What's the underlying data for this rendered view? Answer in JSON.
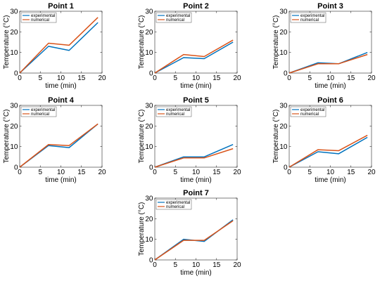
{
  "chart_data": [
    {
      "type": "line",
      "title": "Point 1",
      "xlabel": "time (min)",
      "ylabel": "Temperature (°C)",
      "xlim": [
        0,
        20
      ],
      "ylim": [
        0,
        30
      ],
      "xticks": [
        0,
        5,
        10,
        15,
        20
      ],
      "yticks": [
        0,
        10,
        20,
        30
      ],
      "legend": "top-left",
      "series": [
        {
          "name": "experimental",
          "color": "#0072BD",
          "x": [
            0,
            7,
            12,
            19
          ],
          "y": [
            0,
            13,
            11,
            24.5
          ]
        },
        {
          "name": "numerical",
          "color": "#D95319",
          "x": [
            0,
            7,
            12,
            19
          ],
          "y": [
            0,
            14.5,
            13.5,
            27
          ]
        }
      ]
    },
    {
      "type": "line",
      "title": "Point 2",
      "xlabel": "time (min)",
      "ylabel": "Temperature (°C)",
      "xlim": [
        0,
        20
      ],
      "ylim": [
        0,
        30
      ],
      "xticks": [
        0,
        5,
        10,
        15,
        20
      ],
      "yticks": [
        0,
        10,
        20,
        30
      ],
      "legend": "top-left",
      "series": [
        {
          "name": "experimental",
          "color": "#0072BD",
          "x": [
            0,
            7,
            12,
            19
          ],
          "y": [
            0,
            7.5,
            7,
            15
          ]
        },
        {
          "name": "numerical",
          "color": "#D95319",
          "x": [
            0,
            7,
            12,
            19
          ],
          "y": [
            0,
            9,
            8,
            16
          ]
        }
      ]
    },
    {
      "type": "line",
      "title": "Point 3",
      "xlabel": "time (min)",
      "ylabel": "Temperature (°C)",
      "xlim": [
        0,
        20
      ],
      "ylim": [
        0,
        30
      ],
      "xticks": [
        0,
        5,
        10,
        15,
        20
      ],
      "yticks": [
        0,
        10,
        20,
        30
      ],
      "legend": "top-left",
      "series": [
        {
          "name": "experimental",
          "color": "#0072BD",
          "x": [
            0,
            7,
            12,
            19
          ],
          "y": [
            0,
            5,
            4.5,
            10
          ]
        },
        {
          "name": "numerical",
          "color": "#D95319",
          "x": [
            0,
            7,
            12,
            19
          ],
          "y": [
            0,
            4.5,
            4.5,
            9
          ]
        }
      ]
    },
    {
      "type": "line",
      "title": "Point 4",
      "xlabel": "time (min)",
      "ylabel": "Temperature (°C)",
      "xlim": [
        0,
        20
      ],
      "ylim": [
        0,
        30
      ],
      "xticks": [
        0,
        5,
        10,
        15,
        20
      ],
      "yticks": [
        0,
        10,
        20,
        30
      ],
      "legend": "top-left",
      "series": [
        {
          "name": "experimental",
          "color": "#0072BD",
          "x": [
            0,
            7,
            12,
            19
          ],
          "y": [
            0,
            10.5,
            9.5,
            21
          ]
        },
        {
          "name": "numerical",
          "color": "#D95319",
          "x": [
            0,
            7,
            12,
            19
          ],
          "y": [
            0,
            11,
            10.5,
            21
          ]
        }
      ]
    },
    {
      "type": "line",
      "title": "Point 5",
      "xlabel": "time (min)",
      "ylabel": "Temperature (°C)",
      "xlim": [
        0,
        20
      ],
      "ylim": [
        0,
        30
      ],
      "xticks": [
        0,
        5,
        10,
        15,
        20
      ],
      "yticks": [
        0,
        10,
        20,
        30
      ],
      "legend": "top-left",
      "series": [
        {
          "name": "experimental",
          "color": "#0072BD",
          "x": [
            0,
            7,
            12,
            19
          ],
          "y": [
            0,
            5,
            5,
            11
          ]
        },
        {
          "name": "numerical",
          "color": "#D95319",
          "x": [
            0,
            7,
            12,
            19
          ],
          "y": [
            0,
            4.5,
            4.5,
            9
          ]
        }
      ]
    },
    {
      "type": "line",
      "title": "Point 6",
      "xlabel": "time (min)",
      "ylabel": "Temperature (°C)",
      "xlim": [
        0,
        20
      ],
      "ylim": [
        0,
        30
      ],
      "xticks": [
        0,
        5,
        10,
        15,
        20
      ],
      "yticks": [
        0,
        10,
        20,
        30
      ],
      "legend": "top-left",
      "series": [
        {
          "name": "experimental",
          "color": "#0072BD",
          "x": [
            0,
            7,
            12,
            19
          ],
          "y": [
            0,
            7.5,
            6.5,
            14.5
          ]
        },
        {
          "name": "numerical",
          "color": "#D95319",
          "x": [
            0,
            7,
            12,
            19
          ],
          "y": [
            0,
            8.5,
            8,
            15.5
          ]
        }
      ]
    },
    {
      "type": "line",
      "title": "Point 7",
      "xlabel": "time (min)",
      "ylabel": "Temperature (°C)",
      "xlim": [
        0,
        20
      ],
      "ylim": [
        0,
        30
      ],
      "xticks": [
        0,
        5,
        10,
        15,
        20
      ],
      "yticks": [
        0,
        10,
        20,
        30
      ],
      "legend": "top-left",
      "series": [
        {
          "name": "experimental",
          "color": "#0072BD",
          "x": [
            0,
            7,
            12,
            19
          ],
          "y": [
            0,
            10,
            9,
            19.5
          ]
        },
        {
          "name": "numerical",
          "color": "#D95319",
          "x": [
            0,
            7,
            12,
            19
          ],
          "y": [
            0,
            9.5,
            9.5,
            19
          ]
        }
      ]
    }
  ]
}
